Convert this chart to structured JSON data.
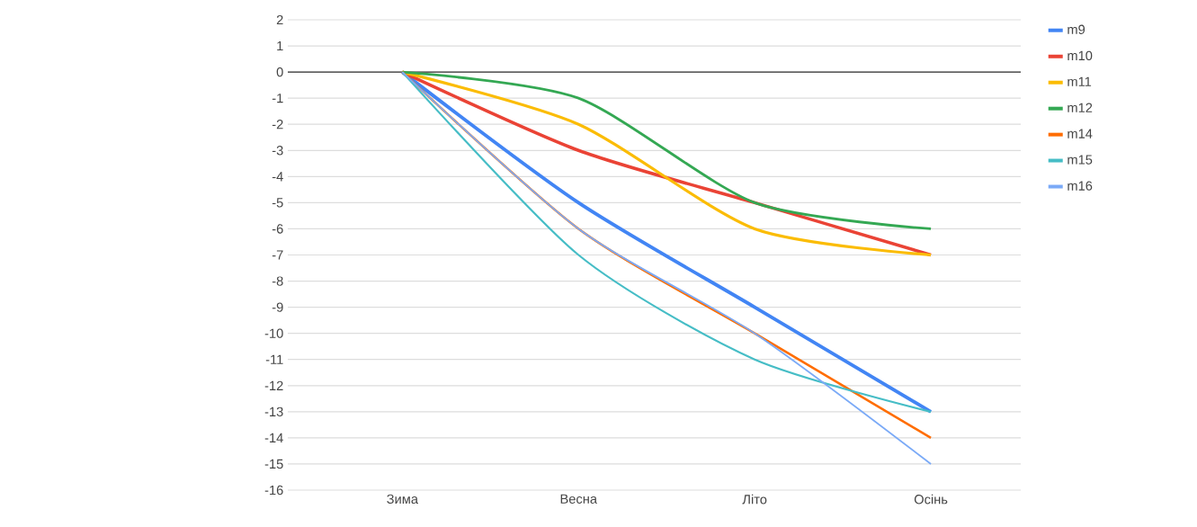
{
  "chart_data": {
    "type": "line",
    "categories": [
      "Зима",
      "Весна",
      "Літо",
      "Осінь"
    ],
    "series": [
      {
        "name": "m9",
        "color": "#4285f4",
        "values": [
          0,
          -5,
          -9,
          -13
        ]
      },
      {
        "name": "m10",
        "color": "#ea4335",
        "values": [
          0,
          -3,
          -5,
          -7
        ]
      },
      {
        "name": "m11",
        "color": "#fbbc04",
        "values": [
          0,
          -2,
          -6,
          -7
        ]
      },
      {
        "name": "m12",
        "color": "#34a853",
        "values": [
          0,
          -1,
          -5,
          -6
        ]
      },
      {
        "name": "m14",
        "color": "#ff6d01",
        "values": [
          0,
          -6,
          -10,
          -14
        ]
      },
      {
        "name": "m15",
        "color": "#46bdc6",
        "values": [
          0,
          -7,
          -11,
          -13
        ]
      },
      {
        "name": "m16",
        "color": "#7baaf7",
        "values": [
          0,
          -6,
          -10,
          -15
        ]
      }
    ],
    "ylim": [
      -16,
      2
    ],
    "yticks": [
      -16,
      -15,
      -14,
      -13,
      -12,
      -11,
      -10,
      -9,
      -8,
      -7,
      -6,
      -5,
      -4,
      -3,
      -2,
      -1,
      0,
      1,
      2
    ],
    "grid": "y",
    "legend": "right",
    "marker": "none",
    "line_style": "solid",
    "ref_lines": [
      {
        "axis": "y",
        "value": 0,
        "color": "#333333"
      }
    ]
  }
}
